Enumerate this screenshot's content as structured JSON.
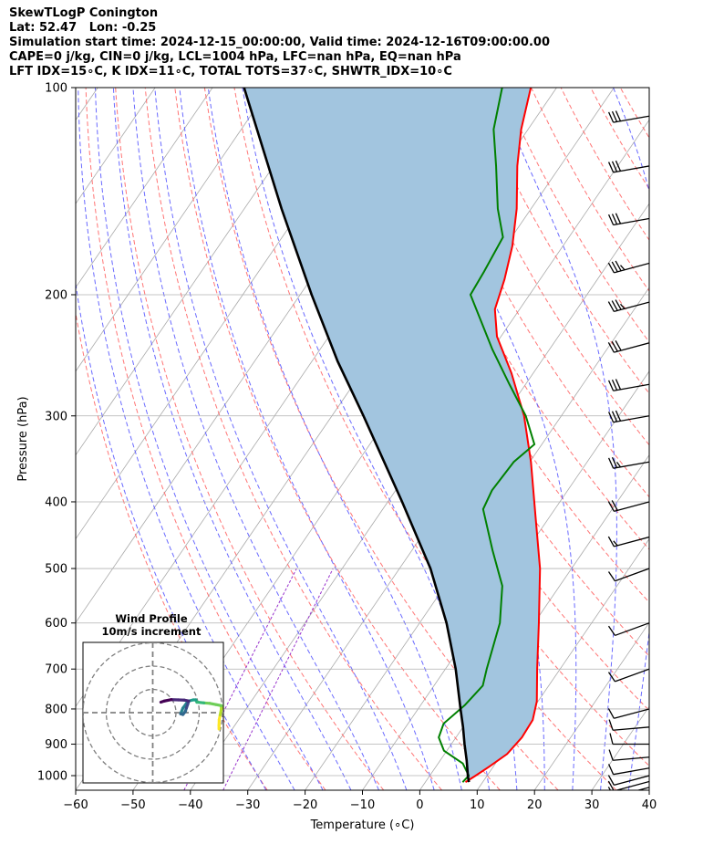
{
  "header": {
    "lines": [
      "SkewTLogP Conington",
      "Lat: 52.47   Lon: -0.25",
      "Simulation start time: 2024-12-15_00:00:00, Valid time: 2024-12-16T09:00:00.00",
      "CAPE=0 j/kg, CIN=0 j/kg, LCL=1004 hPa, LFC=nan hPa, EQ=nan hPa",
      "LFT IDX=15∘C, K IDX=11∘C, TOTAL TOTS=37∘C, SHWTR_IDX=10∘C"
    ]
  },
  "chart_data": [
    {
      "type": "skew-t log-p sounding",
      "xlabel": "Temperature (∘C)",
      "ylabel": "Pressure (hPa)",
      "xlim": [
        -60,
        40
      ],
      "ylim_hpa": [
        1050,
        100
      ],
      "y_scale": "log",
      "x_ticks": [
        -60,
        -50,
        -40,
        -30,
        -20,
        -10,
        0,
        10,
        20,
        30,
        40
      ],
      "x_tick_labels": [
        "−60",
        "−50",
        "−40",
        "−30",
        "−20",
        "−10",
        "0",
        "10",
        "20",
        "30",
        "40"
      ],
      "y_ticks": [
        1000,
        900,
        800,
        700,
        600,
        500,
        400,
        300,
        200,
        100
      ],
      "y_tick_labels": [
        "1000",
        "900",
        "800",
        "700",
        "600",
        "500",
        "400",
        "300",
        "200",
        "100"
      ],
      "grid": true,
      "colors": {
        "temperature": "#ff0000",
        "dewpoint": "#008000",
        "parcel": "#000000",
        "cin_cape_fill": "#a2c5df",
        "dry_adiabat": "#ff6666",
        "moist_adiabat": "#5a5aff",
        "mixing_ratio": "#9933cc",
        "isotherm": "#aaaaaa"
      },
      "temperature": [
        {
          "p": 1022,
          "t": 7.0
        },
        {
          "p": 1000,
          "t": 8.0
        },
        {
          "p": 970,
          "t": 9.3
        },
        {
          "p": 930,
          "t": 10.9
        },
        {
          "p": 880,
          "t": 11.5
        },
        {
          "p": 830,
          "t": 11.3
        },
        {
          "p": 780,
          "t": 9.8
        },
        {
          "p": 700,
          "t": 6.0
        },
        {
          "p": 600,
          "t": 0.8
        },
        {
          "p": 500,
          "t": -5.5
        },
        {
          "p": 420,
          "t": -12.5
        },
        {
          "p": 350,
          "t": -19.8
        },
        {
          "p": 300,
          "t": -26.5
        },
        {
          "p": 260,
          "t": -33.8
        },
        {
          "p": 230,
          "t": -40.7
        },
        {
          "p": 210,
          "t": -44.3
        },
        {
          "p": 190,
          "t": -46.2
        },
        {
          "p": 170,
          "t": -48.8
        },
        {
          "p": 150,
          "t": -52.5
        },
        {
          "p": 130,
          "t": -57.5
        },
        {
          "p": 115,
          "t": -61.2
        },
        {
          "p": 100,
          "t": -64.5
        }
      ],
      "dewpoint": [
        {
          "p": 1022,
          "t": 6.5
        },
        {
          "p": 1000,
          "t": 6.8
        },
        {
          "p": 960,
          "t": 4.3
        },
        {
          "p": 920,
          "t": -0.5
        },
        {
          "p": 880,
          "t": -3.0
        },
        {
          "p": 840,
          "t": -3.8
        },
        {
          "p": 790,
          "t": -2.3
        },
        {
          "p": 740,
          "t": -1.5
        },
        {
          "p": 700,
          "t": -2.8
        },
        {
          "p": 600,
          "t": -6.0
        },
        {
          "p": 530,
          "t": -10.0
        },
        {
          "p": 470,
          "t": -16.0
        },
        {
          "p": 410,
          "t": -22.5
        },
        {
          "p": 385,
          "t": -23.2
        },
        {
          "p": 350,
          "t": -22.8
        },
        {
          "p": 330,
          "t": -21.3
        },
        {
          "p": 300,
          "t": -26.2
        },
        {
          "p": 270,
          "t": -32.8
        },
        {
          "p": 240,
          "t": -40.0
        },
        {
          "p": 200,
          "t": -50.3
        },
        {
          "p": 185,
          "t": -50.7
        },
        {
          "p": 165,
          "t": -51.5
        },
        {
          "p": 150,
          "t": -55.8
        },
        {
          "p": 130,
          "t": -61.2
        },
        {
          "p": 115,
          "t": -66.0
        },
        {
          "p": 100,
          "t": -69.5
        }
      ],
      "parcel": [
        {
          "p": 1022,
          "t": 7.6
        },
        {
          "p": 1004,
          "t": 6.8
        },
        {
          "p": 950,
          "t": 4.6
        },
        {
          "p": 900,
          "t": 2.3
        },
        {
          "p": 850,
          "t": 0.0
        },
        {
          "p": 800,
          "t": -2.6
        },
        {
          "p": 700,
          "t": -8.2
        },
        {
          "p": 600,
          "t": -15.3
        },
        {
          "p": 500,
          "t": -24.6
        },
        {
          "p": 400,
          "t": -37.5
        },
        {
          "p": 300,
          "t": -54.5
        },
        {
          "p": 250,
          "t": -65.5
        },
        {
          "p": 200,
          "t": -78.0
        },
        {
          "p": 150,
          "t": -93.5
        },
        {
          "p": 100,
          "t": -114.5
        }
      ],
      "wind_barbs": [
        {
          "p": 1040,
          "speed_kt": 10,
          "dir_deg": 255
        },
        {
          "p": 1020,
          "speed_kt": 10,
          "dir_deg": 255
        },
        {
          "p": 1000,
          "speed_kt": 10,
          "dir_deg": 255
        },
        {
          "p": 975,
          "speed_kt": 10,
          "dir_deg": 260
        },
        {
          "p": 940,
          "speed_kt": 10,
          "dir_deg": 265
        },
        {
          "p": 900,
          "speed_kt": 10,
          "dir_deg": 270
        },
        {
          "p": 850,
          "speed_kt": 10,
          "dir_deg": 265
        },
        {
          "p": 800,
          "speed_kt": 10,
          "dir_deg": 255
        },
        {
          "p": 700,
          "speed_kt": 10,
          "dir_deg": 250
        },
        {
          "p": 600,
          "speed_kt": 10,
          "dir_deg": 250
        },
        {
          "p": 500,
          "speed_kt": 10,
          "dir_deg": 250
        },
        {
          "p": 450,
          "speed_kt": 15,
          "dir_deg": 255
        },
        {
          "p": 400,
          "speed_kt": 20,
          "dir_deg": 255
        },
        {
          "p": 350,
          "speed_kt": 25,
          "dir_deg": 260
        },
        {
          "p": 300,
          "speed_kt": 30,
          "dir_deg": 260
        },
        {
          "p": 270,
          "speed_kt": 30,
          "dir_deg": 260
        },
        {
          "p": 235,
          "speed_kt": 30,
          "dir_deg": 255
        },
        {
          "p": 205,
          "speed_kt": 35,
          "dir_deg": 255
        },
        {
          "p": 180,
          "speed_kt": 35,
          "dir_deg": 255
        },
        {
          "p": 155,
          "speed_kt": 30,
          "dir_deg": 260
        },
        {
          "p": 130,
          "speed_kt": 30,
          "dir_deg": 260
        },
        {
          "p": 110,
          "speed_kt": 30,
          "dir_deg": 260
        }
      ]
    },
    {
      "type": "hodograph",
      "title": "Wind Profile",
      "subtitle": "10m/s increment",
      "rings_ms": [
        10,
        20,
        30
      ],
      "grid": true,
      "points": [
        {
          "u": 28.5,
          "v": -7.0
        },
        {
          "u": 28.5,
          "v": -5.5
        },
        {
          "u": 28.6,
          "v": -3.0
        },
        {
          "u": 29.0,
          "v": -1.0
        },
        {
          "u": 29.5,
          "v": 1.5
        },
        {
          "u": 29.5,
          "v": 3.0
        },
        {
          "u": 27.0,
          "v": 3.5
        },
        {
          "u": 24.5,
          "v": 4.0
        },
        {
          "u": 22.0,
          "v": 4.2
        },
        {
          "u": 19.0,
          "v": 4.5
        },
        {
          "u": 18.5,
          "v": 5.5
        },
        {
          "u": 17.5,
          "v": 5.5
        },
        {
          "u": 15.5,
          "v": 5.0
        },
        {
          "u": 14.5,
          "v": 4.0
        },
        {
          "u": 13.0,
          "v": 2.0
        },
        {
          "u": 12.0,
          "v": -0.5
        },
        {
          "u": 13.0,
          "v": -0.8
        },
        {
          "u": 14.0,
          "v": 0.5
        },
        {
          "u": 14.5,
          "v": 2.0
        },
        {
          "u": 15.0,
          "v": 3.5
        },
        {
          "u": 15.5,
          "v": 5.0
        },
        {
          "u": 13.5,
          "v": 5.4
        },
        {
          "u": 11.0,
          "v": 5.5
        },
        {
          "u": 8.0,
          "v": 5.6
        },
        {
          "u": 5.0,
          "v": 5.0
        },
        {
          "u": 3.5,
          "v": 4.5
        }
      ]
    }
  ]
}
